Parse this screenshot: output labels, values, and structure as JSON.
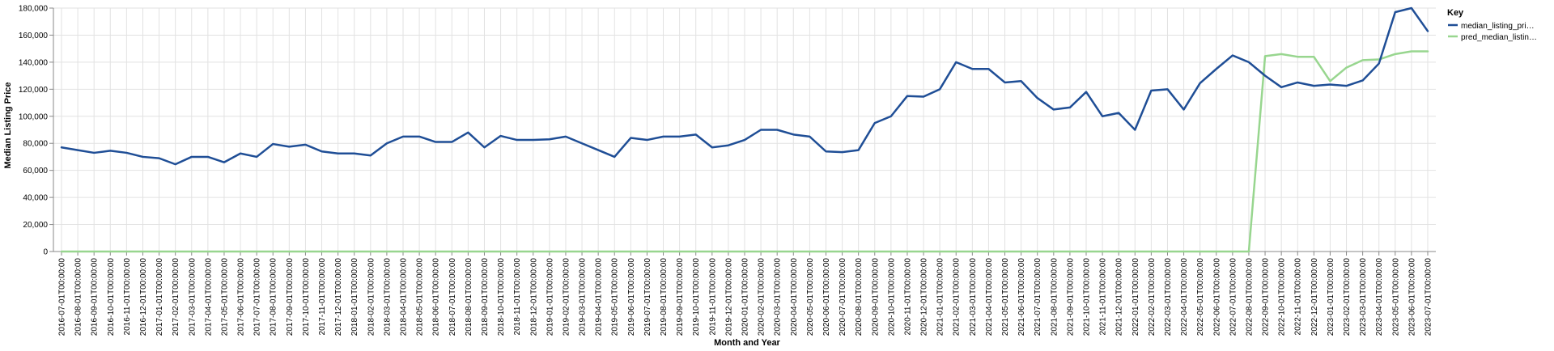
{
  "chart_data": {
    "type": "line",
    "xlabel": "Month and Year",
    "ylabel": "Median Listing Price",
    "ylim": [
      0,
      180000
    ],
    "y_ticks": [
      "0",
      "20,000",
      "40,000",
      "60,000",
      "80,000",
      "100,000",
      "120,000",
      "140,000",
      "160,000",
      "180,000"
    ],
    "grid": true,
    "legend": {
      "title": "Key",
      "placement": "right",
      "labels": [
        "median_listing_pri…",
        "pred_median_listin…"
      ]
    },
    "colors": {
      "median": "#1f4e96",
      "pred": "#98d68f",
      "grid": "#e2e2e2",
      "axis": "#888888"
    },
    "x": [
      "2016-07-01T00:00:00",
      "2016-08-01T00:00:00",
      "2016-09-01T00:00:00",
      "2016-10-01T00:00:00",
      "2016-11-01T00:00:00",
      "2016-12-01T00:00:00",
      "2017-01-01T00:00:00",
      "2017-02-01T00:00:00",
      "2017-03-01T00:00:00",
      "2017-04-01T00:00:00",
      "2017-05-01T00:00:00",
      "2017-06-01T00:00:00",
      "2017-07-01T00:00:00",
      "2017-08-01T00:00:00",
      "2017-09-01T00:00:00",
      "2017-10-01T00:00:00",
      "2017-11-01T00:00:00",
      "2017-12-01T00:00:00",
      "2018-01-01T00:00:00",
      "2018-02-01T00:00:00",
      "2018-03-01T00:00:00",
      "2018-04-01T00:00:00",
      "2018-05-01T00:00:00",
      "2018-06-01T00:00:00",
      "2018-07-01T00:00:00",
      "2018-08-01T00:00:00",
      "2018-09-01T00:00:00",
      "2018-10-01T00:00:00",
      "2018-11-01T00:00:00",
      "2018-12-01T00:00:00",
      "2019-01-01T00:00:00",
      "2019-02-01T00:00:00",
      "2019-03-01T00:00:00",
      "2019-04-01T00:00:00",
      "2019-05-01T00:00:00",
      "2019-06-01T00:00:00",
      "2019-07-01T00:00:00",
      "2019-08-01T00:00:00",
      "2019-09-01T00:00:00",
      "2019-10-01T00:00:00",
      "2019-11-01T00:00:00",
      "2019-12-01T00:00:00",
      "2020-01-01T00:00:00",
      "2020-02-01T00:00:00",
      "2020-03-01T00:00:00",
      "2020-04-01T00:00:00",
      "2020-05-01T00:00:00",
      "2020-06-01T00:00:00",
      "2020-07-01T00:00:00",
      "2020-08-01T00:00:00",
      "2020-09-01T00:00:00",
      "2020-10-01T00:00:00",
      "2020-11-01T00:00:00",
      "2020-12-01T00:00:00",
      "2021-01-01T00:00:00",
      "2021-02-01T00:00:00",
      "2021-03-01T00:00:00",
      "2021-04-01T00:00:00",
      "2021-05-01T00:00:00",
      "2021-06-01T00:00:00",
      "2021-07-01T00:00:00",
      "2021-08-01T00:00:00",
      "2021-09-01T00:00:00",
      "2021-10-01T00:00:00",
      "2021-11-01T00:00:00",
      "2021-12-01T00:00:00",
      "2022-01-01T00:00:00",
      "2022-02-01T00:00:00",
      "2022-03-01T00:00:00",
      "2022-04-01T00:00:00",
      "2022-05-01T00:00:00",
      "2022-06-01T00:00:00",
      "2022-07-01T00:00:00",
      "2022-08-01T00:00:00",
      "2022-09-01T00:00:00",
      "2022-10-01T00:00:00",
      "2022-11-01T00:00:00",
      "2022-12-01T00:00:00",
      "2023-01-01T00:00:00",
      "2023-02-01T00:00:00",
      "2023-03-01T00:00:00",
      "2023-04-01T00:00:00",
      "2023-05-01T00:00:00",
      "2023-06-01T00:00:00",
      "2023-07-01T00:00:00"
    ],
    "series": [
      {
        "name": "median_listing_pri…",
        "values": [
          77000,
          75000,
          73000,
          74500,
          73000,
          70000,
          69000,
          64500,
          70000,
          70000,
          66000,
          72500,
          70000,
          79500,
          77500,
          79000,
          74000,
          72500,
          72500,
          71000,
          80000,
          85000,
          85000,
          81000,
          81000,
          88000,
          77000,
          85500,
          82500,
          82500,
          83000,
          85000,
          80000,
          75000,
          70000,
          84000,
          82500,
          85000,
          85000,
          86500,
          77000,
          78500,
          82500,
          90000,
          90000,
          86500,
          85000,
          74000,
          73500,
          75000,
          95000,
          100000,
          115000,
          114500,
          120000,
          140000,
          135000,
          135000,
          125000,
          126000,
          113500,
          105000,
          106500,
          118000,
          100000,
          102500,
          90000,
          119000,
          120000,
          105000,
          124500,
          135000,
          145000,
          140000,
          130000,
          121500,
          125000,
          122500,
          123500,
          122500,
          126500,
          139000,
          177000,
          180000,
          163000
        ]
      },
      {
        "name": "pred_median_listin…",
        "values": [
          0,
          0,
          0,
          0,
          0,
          0,
          0,
          0,
          0,
          0,
          0,
          0,
          0,
          0,
          0,
          0,
          0,
          0,
          0,
          0,
          0,
          0,
          0,
          0,
          0,
          0,
          0,
          0,
          0,
          0,
          0,
          0,
          0,
          0,
          0,
          0,
          0,
          0,
          0,
          0,
          0,
          0,
          0,
          0,
          0,
          0,
          0,
          0,
          0,
          0,
          0,
          0,
          0,
          0,
          0,
          0,
          0,
          0,
          0,
          0,
          0,
          0,
          0,
          0,
          0,
          0,
          0,
          0,
          0,
          0,
          0,
          0,
          0,
          0,
          144500,
          146000,
          144000,
          144000,
          126000,
          136000,
          141500,
          142000,
          146000,
          148000,
          148000
        ]
      }
    ]
  }
}
